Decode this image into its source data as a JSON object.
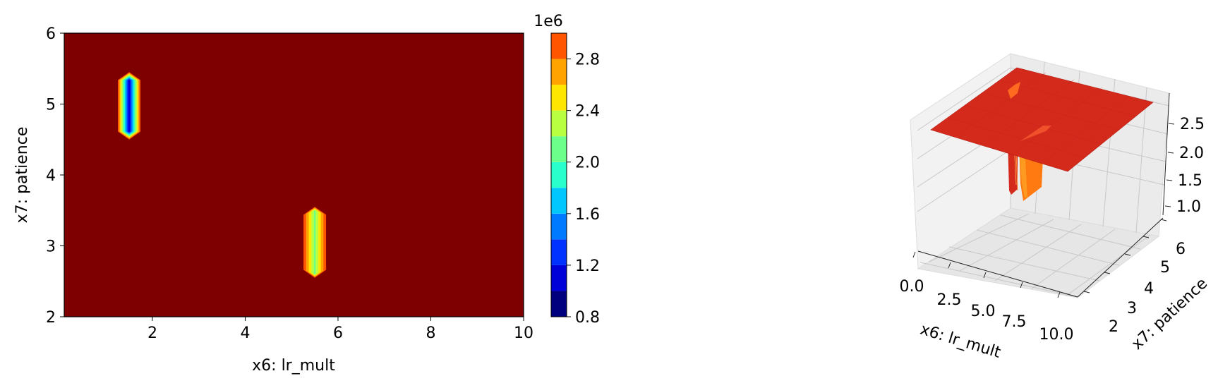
{
  "chart_data": [
    {
      "type": "heatmap",
      "xlabel": "x6: lr_mult",
      "ylabel": "x7: patience",
      "xlim": [
        0.1,
        10
      ],
      "ylim": [
        2,
        6
      ],
      "x_ticks": [
        2,
        4,
        6,
        8,
        10
      ],
      "x_tick_labels": [
        "2",
        "4",
        "6",
        "8",
        "10"
      ],
      "y_ticks": [
        2,
        3,
        4,
        5,
        6
      ],
      "y_tick_labels": [
        "2",
        "3",
        "4",
        "5",
        "6"
      ],
      "background_value": 2.9,
      "features": [
        {
          "x": 1.5,
          "y_min": 4.5,
          "y_max": 5.45,
          "min_value": 0.9
        },
        {
          "x": 5.5,
          "y_min": 2.55,
          "y_max": 3.55,
          "min_value": 2.0
        }
      ],
      "colorbar": {
        "exponent_label": "1e6",
        "range": [
          0.8,
          3.0
        ],
        "levels": [
          0.8,
          1.0,
          1.2,
          1.4,
          1.6,
          1.8,
          2.0,
          2.2,
          2.4,
          2.6,
          2.8,
          3.0
        ],
        "level_colors": [
          "#00007f",
          "#0000d8",
          "#0032ff",
          "#007bff",
          "#00c8ff",
          "#28ffcd",
          "#6cff8a",
          "#b7ff40",
          "#ffe600",
          "#ffa300",
          "#ff5500",
          "#ea0000"
        ],
        "ticks": [
          0.8,
          1.2,
          1.6,
          2.0,
          2.4,
          2.8
        ],
        "tick_labels": [
          "0.8",
          "1.2",
          "1.6",
          "2.0",
          "2.4",
          "2.8"
        ]
      },
      "background_color": "#7f0000"
    },
    {
      "type": "surface3d",
      "xlabel": "x6: lr_mult",
      "ylabel": "x7: patience",
      "x_tick_labels": [
        "0.0",
        "2.5",
        "5.0",
        "7.5",
        "10.0"
      ],
      "y_tick_labels": [
        "2",
        "3",
        "4",
        "5",
        "6"
      ],
      "z_tick_labels": [
        "1.0",
        "1.5",
        "2.0",
        "2.5"
      ],
      "surface_color": "#d42a1c",
      "spike_color": "#ff7a10"
    }
  ]
}
